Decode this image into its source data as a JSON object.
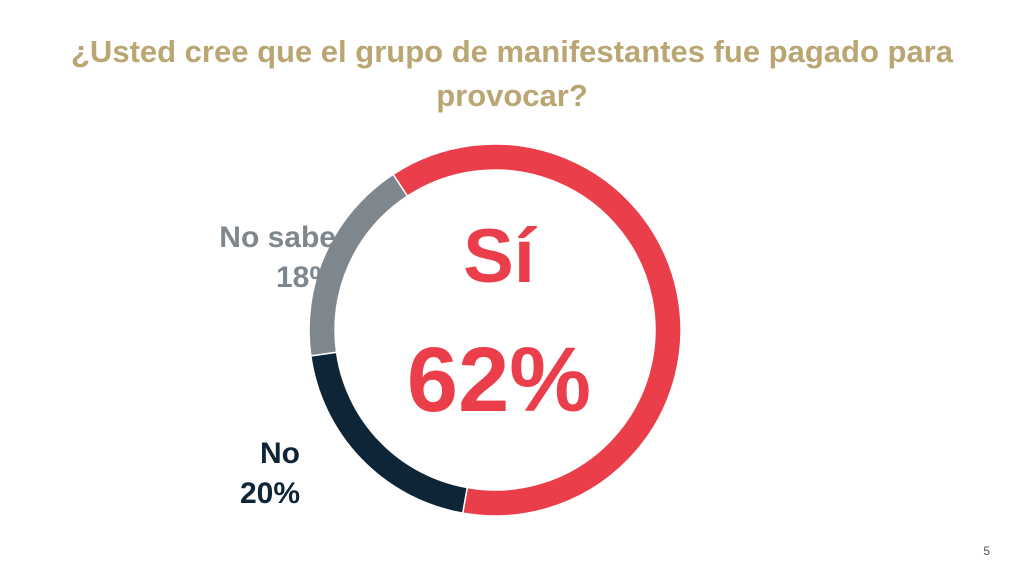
{
  "title": "¿Usted cree que el grupo de manifestantes fue pagado para provocar?",
  "page_number": "5",
  "chart_data": {
    "type": "pie",
    "variant": "donut",
    "title": "¿Usted cree que el grupo de manifestantes fue pagado para provocar?",
    "categories": [
      "Sí",
      "No",
      "No sabe"
    ],
    "values": [
      62,
      20,
      18
    ],
    "unit": "%",
    "colors": [
      "#ea3f4b",
      "#0d2537",
      "#7f878e"
    ],
    "labels": {
      "si": {
        "name": "Sí",
        "value": "62%"
      },
      "no": {
        "name": "No",
        "value": "20%"
      },
      "no_sabe": {
        "name": "No sabe",
        "value": "18%"
      }
    }
  }
}
